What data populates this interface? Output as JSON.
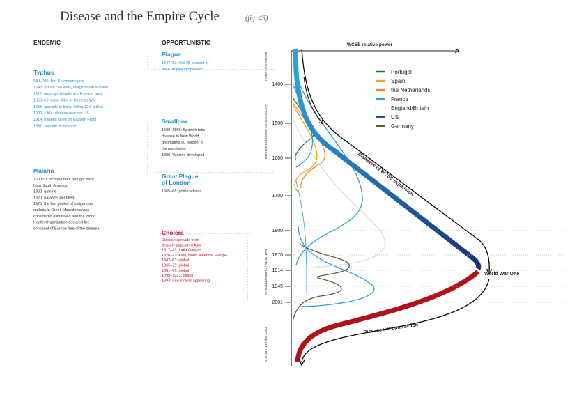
{
  "header": {
    "title": "Disease and the Empire Cycle",
    "fig": "(fig. 49)"
  },
  "columns": {
    "endemic": "ENDEMIC",
    "opportunistic": "OPPORTUNISTIC"
  },
  "endemic": [
    {
      "name": "Typhus",
      "lines": [
        "540–700: first European cycle",
        "1643: British civil war (ravaged both armies)",
        "1812: destroys Napoleon's Russian army",
        "1853–56: great killer of Crimean War",
        "1855: spreads to India, killing 12.6 million",
        "1900–1904: disease reaches US",
        "1914: millions killed on Eastern Front",
        "1937: vaccine developed"
      ]
    },
    {
      "name": "Malaria",
      "lines": [
        "1600s: Cinchona bark brought back",
        "from South America",
        "1820: quinine",
        "1820: parasite identified",
        "1975: the last pocket of indigenous",
        "malaria in Greek Macedonia was",
        "considered eliminated and the World",
        "Health Organization declared the",
        "continent of Europe free of the disease"
      ]
    }
  ],
  "opportunistic": [
    {
      "name": [
        "Plague"
      ],
      "lines": [
        "1347–53: kills 25 percent of",
        "the European population"
      ]
    },
    {
      "name": [
        "Smallpox"
      ],
      "lines": [
        "1500–1555: Spanish take",
        "disease to New World,",
        "decimating 90 percent of",
        "the population",
        "1800: Vaccine developed"
      ]
    },
    {
      "name": [
        "Great Plague",
        "of London"
      ],
      "lines": [
        "1665–66: post-civil war"
      ]
    },
    {
      "name": [
        "Cholera"
      ],
      "lines": [
        "Disease spreads from",
        "densely populated Asia",
        "1817–23: India Ganges",
        "1826–27: Asia, North America, Europe",
        "1842–63: global",
        "1865–75: global",
        "1881–96: global",
        "1899–1923: global",
        "1994: new strains appearing"
      ]
    }
  ],
  "chart": {
    "axis_title": "WCSE relative power",
    "phases": [
      "REGIONALISATION",
      "ASCENSION TO SUPERPOWERSHIP",
      "MATURITY / OVEREXTENSION",
      "DECLINE AND LEGACY"
    ],
    "years": [
      "1400",
      "1500",
      "1600",
      "1700",
      "1800",
      "1870",
      "1914",
      "1945",
      "2001"
    ],
    "legend": [
      {
        "name": "Portugal",
        "color": "#1a7a3a"
      },
      {
        "name": "Spain",
        "color": "#e3ad1f"
      },
      {
        "name": "the Netherlands",
        "color": "#f08a2a"
      },
      {
        "name": "France",
        "color": "#2b9fd8"
      },
      {
        "name": "England/Britain",
        "color": "#ffffff"
      },
      {
        "name": "US",
        "color": "#1f4f9a"
      },
      {
        "name": "Germany",
        "color": "#5b5b3c"
      }
    ],
    "annotations": {
      "expansion": "Diseases of WCSE expansion",
      "war": "World War One",
      "contraction": "Diseases of contraction"
    }
  }
}
